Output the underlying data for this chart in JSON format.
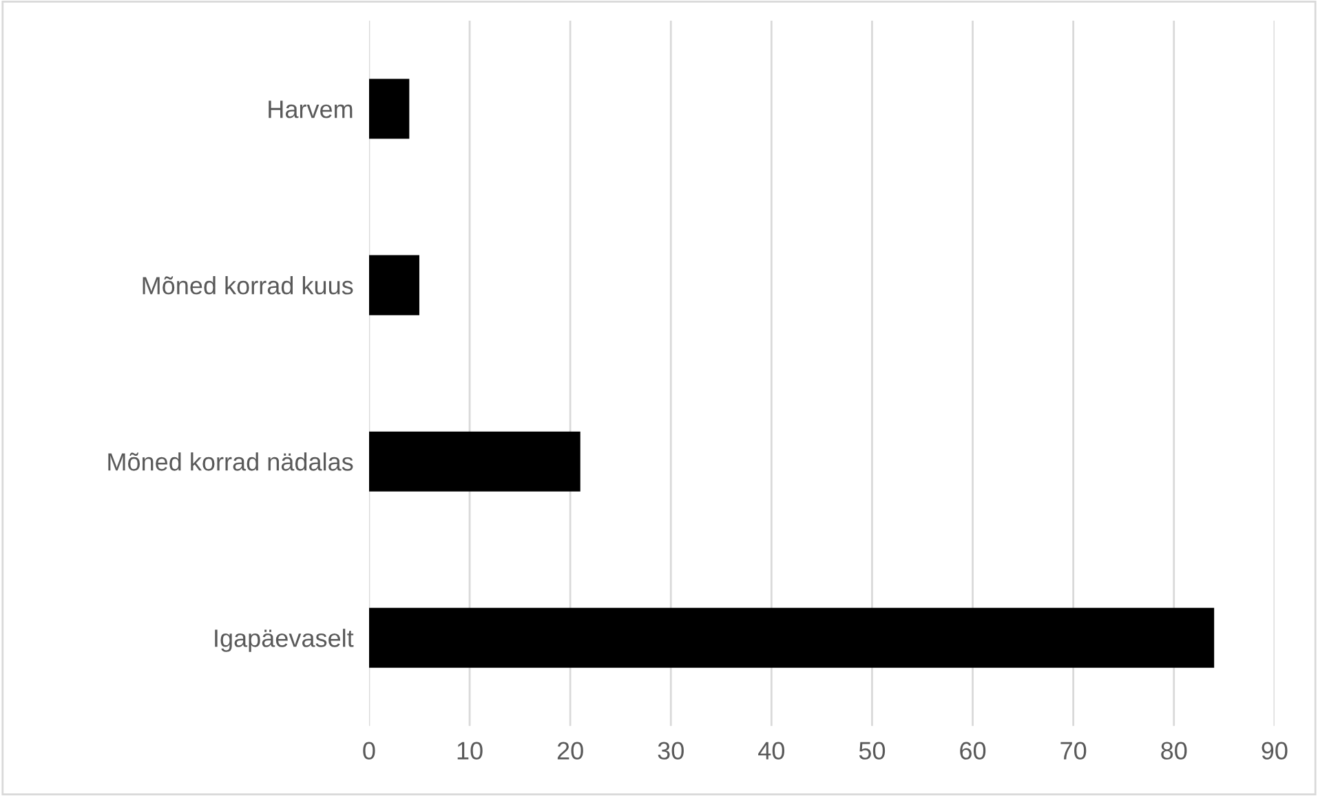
{
  "chart_data": {
    "type": "bar",
    "orientation": "horizontal",
    "categories": [
      "Harvem",
      "Mõned korrad kuus",
      "Mõned korrad nädalas",
      "Igapäevaselt"
    ],
    "values": [
      4,
      5,
      21,
      84
    ],
    "color": "#000000",
    "xlim": [
      0,
      90
    ],
    "xticks": [
      0,
      10,
      20,
      30,
      40,
      50,
      60,
      70,
      80,
      90
    ],
    "grid": "x",
    "legend": false
  }
}
